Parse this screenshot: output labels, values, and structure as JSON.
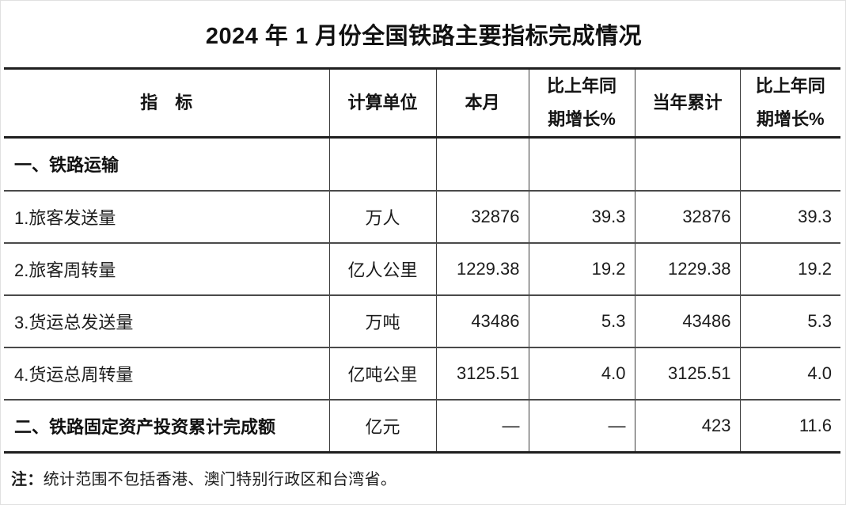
{
  "title": "2024 年 1 月份全国铁路主要指标完成情况",
  "table": {
    "headers": [
      "指　标",
      "计算单位",
      "本月",
      "比上年同\n期增长%",
      "当年累计",
      "比上年同\n期增长%"
    ],
    "rows": [
      {
        "indicator": "一、铁路运输",
        "unit": "",
        "month": "",
        "month_growth": "",
        "ytd": "",
        "ytd_growth": ""
      },
      {
        "indicator": "1.旅客发送量",
        "unit": "万人",
        "month": "32876",
        "month_growth": "39.3",
        "ytd": "32876",
        "ytd_growth": "39.3"
      },
      {
        "indicator": "2.旅客周转量",
        "unit": "亿人公里",
        "month": "1229.38",
        "month_growth": "19.2",
        "ytd": "1229.38",
        "ytd_growth": "19.2"
      },
      {
        "indicator": "3.货运总发送量",
        "unit": "万吨",
        "month": "43486",
        "month_growth": "5.3",
        "ytd": "43486",
        "ytd_growth": "5.3"
      },
      {
        "indicator": "4.货运总周转量",
        "unit": "亿吨公里",
        "month": "3125.51",
        "month_growth": "4.0",
        "ytd": "3125.51",
        "ytd_growth": "4.0"
      },
      {
        "indicator": "二、铁路固定资产投资累计完成额",
        "unit": "亿元",
        "month": "—",
        "month_growth": "—",
        "ytd": "423",
        "ytd_growth": "11.6"
      }
    ]
  },
  "note": {
    "prefix": "注：",
    "text": "统计范围不包括香港、澳门特别行政区和台湾省。"
  },
  "colors": {
    "background": "#ffffff",
    "text": "#1a1a1a",
    "rule_heavy": "#1f1f1f",
    "rule_light": "#4a4a4a",
    "frame": "#e0e0e0"
  }
}
